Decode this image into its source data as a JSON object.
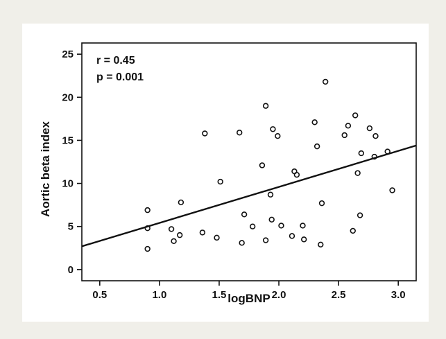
{
  "chart_data": {
    "type": "scatter",
    "xlabel": "logBNP",
    "ylabel": "Aortic beta index",
    "xlim": [
      0.35,
      3.15
    ],
    "ylim": [
      -1.3,
      26.3
    ],
    "xticks": [
      0.5,
      1.0,
      1.5,
      2.0,
      2.5,
      3.0
    ],
    "xtick_labels": [
      "0.5",
      "1.0",
      "1.5",
      "2.0",
      "2.5",
      "3.0"
    ],
    "yticks": [
      0,
      5,
      10,
      15,
      20,
      25
    ],
    "ytick_labels": [
      "0",
      "5",
      "10",
      "15",
      "20",
      "25"
    ],
    "grid": false,
    "annotations": [
      "r = 0.45",
      "p = 0.001"
    ],
    "regression_line": {
      "x": [
        0.35,
        3.15
      ],
      "y": [
        2.7,
        14.4
      ]
    },
    "points": [
      [
        0.9,
        6.9
      ],
      [
        0.9,
        4.8
      ],
      [
        0.9,
        2.4
      ],
      [
        1.1,
        4.7
      ],
      [
        1.12,
        3.3
      ],
      [
        1.17,
        4.0
      ],
      [
        1.18,
        7.8
      ],
      [
        1.36,
        4.3
      ],
      [
        1.38,
        15.8
      ],
      [
        1.48,
        3.7
      ],
      [
        1.51,
        10.2
      ],
      [
        1.67,
        15.9
      ],
      [
        1.69,
        3.1
      ],
      [
        1.71,
        6.4
      ],
      [
        1.78,
        5.0
      ],
      [
        1.86,
        12.1
      ],
      [
        1.89,
        3.4
      ],
      [
        1.89,
        19.0
      ],
      [
        1.93,
        8.7
      ],
      [
        1.94,
        5.8
      ],
      [
        1.95,
        16.3
      ],
      [
        1.99,
        15.5
      ],
      [
        2.02,
        5.1
      ],
      [
        2.11,
        3.9
      ],
      [
        2.13,
        11.4
      ],
      [
        2.15,
        11.0
      ],
      [
        2.2,
        5.1
      ],
      [
        2.21,
        3.5
      ],
      [
        2.3,
        17.1
      ],
      [
        2.32,
        14.3
      ],
      [
        2.35,
        2.9
      ],
      [
        2.36,
        7.7
      ],
      [
        2.39,
        21.8
      ],
      [
        2.55,
        15.6
      ],
      [
        2.58,
        16.7
      ],
      [
        2.62,
        4.5
      ],
      [
        2.64,
        17.9
      ],
      [
        2.66,
        11.2
      ],
      [
        2.68,
        6.3
      ],
      [
        2.69,
        13.5
      ],
      [
        2.76,
        16.4
      ],
      [
        2.8,
        13.1
      ],
      [
        2.81,
        15.5
      ],
      [
        2.91,
        13.7
      ],
      [
        2.95,
        9.2
      ]
    ]
  }
}
